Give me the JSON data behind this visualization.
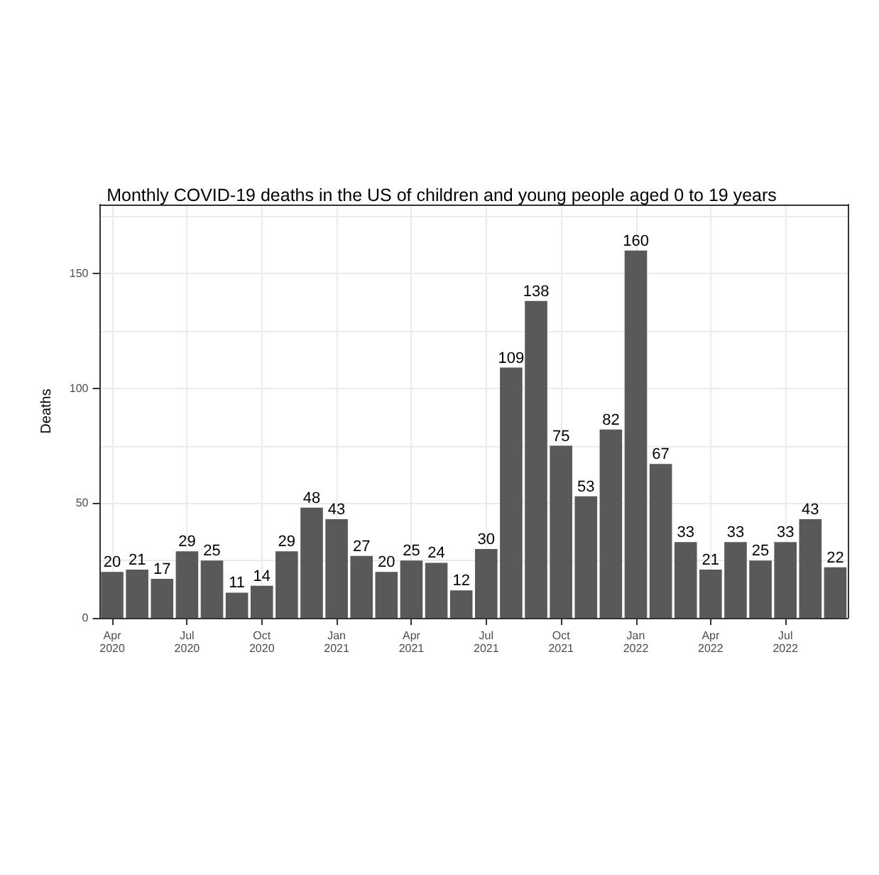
{
  "chart_data": {
    "type": "bar",
    "title": "Monthly COVID-19 deaths in the US of children and young people aged 0 to 19 years",
    "ylabel": "Deaths",
    "categories": [
      "Apr\n2020",
      null,
      null,
      "Jul\n2020",
      null,
      null,
      "Oct\n2020",
      null,
      null,
      "Jan\n2021",
      null,
      null,
      "Apr\n2021",
      null,
      null,
      "Jul\n2021",
      null,
      null,
      "Oct\n2021",
      null,
      null,
      "Jan\n2022",
      null,
      null,
      "Apr\n2022",
      null,
      null,
      "Jul\n2022",
      null,
      null
    ],
    "values": [
      20,
      21,
      17,
      29,
      25,
      11,
      14,
      29,
      48,
      43,
      27,
      20,
      25,
      24,
      12,
      30,
      109,
      138,
      75,
      53,
      82,
      160,
      67,
      33,
      21,
      33,
      25,
      33,
      43,
      22
    ],
    "color": "#595959",
    "data_labels": true,
    "ylim": [
      0,
      180
    ],
    "yticks": [
      0,
      {
        "value": 25,
        "label": null
      },
      50,
      {
        "value": 75,
        "label": null
      },
      100,
      {
        "value": 125,
        "label": null
      },
      150,
      {
        "value": 175,
        "label": null
      }
    ],
    "grid": true
  }
}
